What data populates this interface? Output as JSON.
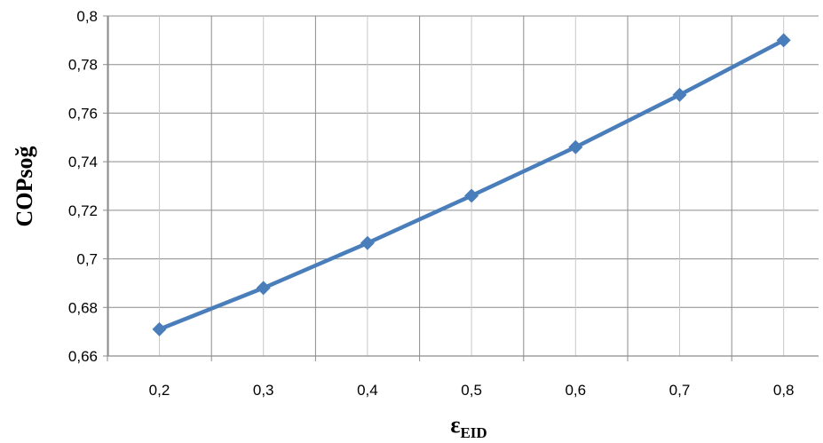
{
  "chart_data": {
    "type": "line",
    "x": [
      0.2,
      0.3,
      0.4,
      0.5,
      0.6,
      0.7,
      0.8
    ],
    "x_tick_labels": [
      "0,2",
      "0,3",
      "0,4",
      "0,5",
      "0,6",
      "0,7",
      "0,8"
    ],
    "series": [
      {
        "values": [
          0.671,
          0.688,
          0.7065,
          0.726,
          0.746,
          0.7675,
          0.79
        ]
      }
    ],
    "y_tick_values": [
      0.66,
      0.68,
      0.7,
      0.72,
      0.74,
      0.76,
      0.78,
      0.8
    ],
    "y_tick_labels": [
      "0,66",
      "0,68",
      "0,7",
      "0,72",
      "0,74",
      "0,76",
      "0,78",
      "0,8"
    ],
    "ylim": [
      0.66,
      0.8
    ],
    "ylabel": "COPsoğ",
    "xlabel_main": "ε",
    "xlabel_sub": "EID",
    "grid": true,
    "line_color": "#4a7ebb",
    "marker": "diamond"
  }
}
